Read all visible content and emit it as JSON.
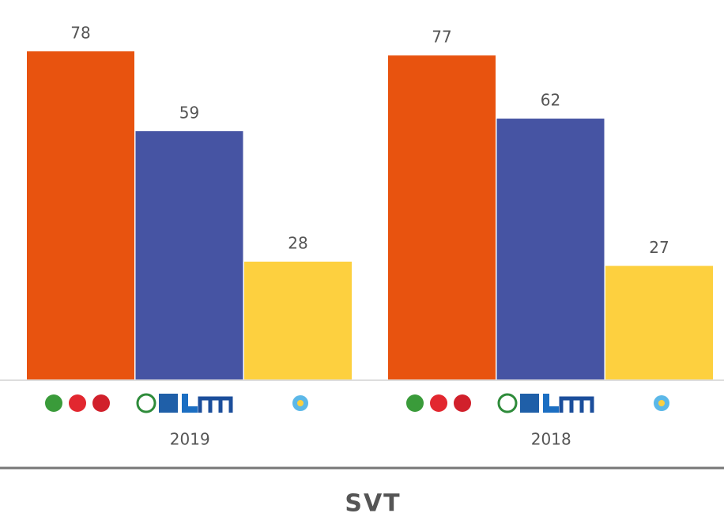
{
  "chart_data": {
    "type": "bar",
    "categories": [
      "2019",
      "2018"
    ],
    "series": [
      {
        "color": "#e8530f",
        "values": [
          78,
          77
        ]
      },
      {
        "color": "#4654a3",
        "values": [
          59,
          62
        ]
      },
      {
        "color": "#fdd03f",
        "values": [
          28,
          27
        ]
      }
    ],
    "ylim": [
      0,
      90
    ]
  },
  "footer": "SVT"
}
